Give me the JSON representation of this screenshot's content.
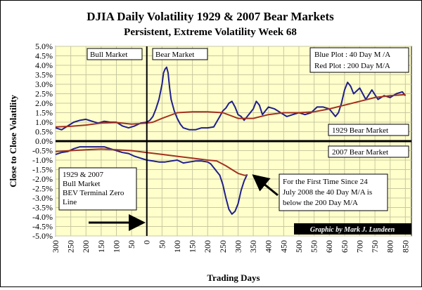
{
  "chart_data": {
    "type": "line",
    "title": "DJIA Daily Volatility 1929 & 2007 Bear Markets",
    "subtitle": "Persistent, Extreme Volatility  Week 68",
    "xlabel": "Trading Days",
    "ylabel": "Close to Close Volatility",
    "x_tick_labels": [
      "300",
      "250",
      "200",
      "150",
      "100",
      "50",
      "0",
      "50",
      "100",
      "150",
      "200",
      "250",
      "300",
      "350",
      "400",
      "450",
      "500",
      "550",
      "600",
      "650",
      "700",
      "750",
      "800",
      "850"
    ],
    "y_tick_labels": [
      "5.0%",
      "4.5%",
      "4.0%",
      "3.5%",
      "3.0%",
      "2.5%",
      "2.0%",
      "1.5%",
      "1.0%",
      "0.5%",
      "0.0%",
      "-0.5%",
      "-1.0%",
      "-1.5%",
      "-2.0%",
      "-2.5%",
      "-3.0%",
      "-3.5%",
      "-4.0%",
      "-4.5%",
      "-5.0%"
    ],
    "xlim": [
      -300,
      870
    ],
    "ylim": [
      -5.0,
      5.0
    ],
    "grid": true,
    "colors": {
      "background": "#ffffcc",
      "grid": "#c8c8a0",
      "blue_series": "#1f1f8a",
      "red_series": "#a3321e",
      "credit_box": "#000000"
    },
    "series": [
      {
        "name": "Blue Plot : 40 Day M /A",
        "color": "#1f1f8a",
        "panel": "1929 Bear Market",
        "x": [
          -300,
          -280,
          -260,
          -240,
          -220,
          -200,
          -180,
          -160,
          -140,
          -120,
          -100,
          -80,
          -60,
          -40,
          -20,
          0,
          10,
          20,
          30,
          40,
          50,
          55,
          60,
          65,
          70,
          75,
          80,
          90,
          100,
          110,
          120,
          140,
          160,
          180,
          200,
          220,
          240,
          250,
          260,
          270,
          280,
          290,
          300,
          310,
          320,
          330,
          340,
          350,
          360,
          370,
          380,
          390,
          400,
          420,
          440,
          460,
          480,
          500,
          520,
          540,
          560,
          580,
          600,
          610,
          620,
          630,
          640,
          650,
          660,
          670,
          680,
          700,
          720,
          740,
          760,
          780,
          800,
          820,
          840,
          850
        ],
        "y": [
          0.7,
          0.6,
          0.8,
          1.0,
          1.1,
          1.15,
          1.05,
          0.95,
          1.05,
          1.0,
          1.0,
          0.8,
          0.7,
          0.8,
          0.95,
          1.0,
          1.1,
          1.3,
          1.7,
          2.2,
          3.0,
          3.6,
          3.8,
          3.9,
          3.6,
          2.8,
          2.2,
          1.6,
          1.2,
          0.9,
          0.7,
          0.6,
          0.6,
          0.7,
          0.7,
          0.75,
          1.3,
          1.6,
          1.75,
          2.0,
          2.1,
          1.8,
          1.4,
          1.3,
          1.1,
          1.3,
          1.5,
          1.7,
          2.1,
          1.9,
          1.4,
          1.6,
          1.8,
          1.7,
          1.5,
          1.3,
          1.4,
          1.5,
          1.4,
          1.5,
          1.8,
          1.8,
          1.7,
          1.5,
          1.3,
          1.5,
          2.0,
          2.7,
          3.1,
          2.9,
          2.5,
          2.8,
          2.2,
          2.7,
          2.2,
          2.4,
          2.3,
          2.5,
          2.6,
          2.4
        ]
      },
      {
        "name": "Red Plot : 200 Day M/A",
        "color": "#a3321e",
        "panel": "1929 Bear Market",
        "x": [
          -300,
          -250,
          -200,
          -150,
          -100,
          -50,
          0,
          20,
          50,
          100,
          150,
          200,
          250,
          300,
          350,
          400,
          450,
          500,
          550,
          600,
          650,
          700,
          750,
          800,
          850
        ],
        "y": [
          0.75,
          0.78,
          0.85,
          0.95,
          0.98,
          0.9,
          0.95,
          1.0,
          1.2,
          1.5,
          1.55,
          1.55,
          1.5,
          1.2,
          1.2,
          1.4,
          1.5,
          1.5,
          1.55,
          1.7,
          1.9,
          2.1,
          2.3,
          2.4,
          2.45
        ]
      },
      {
        "name": "Blue Plot : 40 Day M /A",
        "color": "#1f1f8a",
        "panel": "2007 Bear Market",
        "x": [
          -300,
          -280,
          -260,
          -240,
          -220,
          -200,
          -180,
          -160,
          -140,
          -120,
          -100,
          -80,
          -60,
          -40,
          -20,
          0,
          20,
          40,
          60,
          80,
          100,
          120,
          140,
          160,
          180,
          200,
          210,
          220,
          230,
          240,
          250,
          260,
          270,
          280,
          290,
          300,
          310,
          320,
          330
        ],
        "y": [
          -0.7,
          -0.6,
          -0.55,
          -0.4,
          -0.3,
          -0.3,
          -0.3,
          -0.3,
          -0.3,
          -0.4,
          -0.5,
          -0.6,
          -0.65,
          -0.8,
          -0.9,
          -1.0,
          -1.05,
          -1.1,
          -1.1,
          -1.05,
          -1.0,
          -1.15,
          -1.1,
          -1.05,
          -1.05,
          -1.1,
          -1.2,
          -1.4,
          -1.6,
          -1.8,
          -2.3,
          -3.0,
          -3.6,
          -3.85,
          -3.7,
          -3.3,
          -2.6,
          -2.1,
          -1.75
        ]
      },
      {
        "name": "Red Plot : 200 Day M/A",
        "color": "#a3321e",
        "panel": "2007 Bear Market",
        "x": [
          -300,
          -250,
          -200,
          -150,
          -100,
          -50,
          0,
          50,
          100,
          150,
          200,
          230,
          260,
          280,
          300,
          320,
          330
        ],
        "y": [
          -0.55,
          -0.5,
          -0.45,
          -0.42,
          -0.45,
          -0.5,
          -0.6,
          -0.7,
          -0.8,
          -0.9,
          -1.0,
          -1.05,
          -1.3,
          -1.5,
          -1.7,
          -1.8,
          -1.8
        ]
      }
    ],
    "annotations": {
      "bull_market": "Bull Market",
      "bear_market": "Bear Market",
      "legend_blue": "Blue Plot : 40 Day M /A",
      "legend_red": "Red Plot : 200 Day M/A",
      "panel_1929": "1929 Bear Market",
      "panel_2007": "2007 Bear Market",
      "bev_note": [
        "1929 & 2007",
        "Bull Market",
        "BEV Terminal Zero",
        "Line"
      ],
      "first_time_note": [
        "For the First Time Since 24",
        "July 2008 the 40 Day M/A is",
        "below the 200 Day M/A"
      ],
      "credit": "Graphic by Mark J. Lundeen"
    }
  }
}
